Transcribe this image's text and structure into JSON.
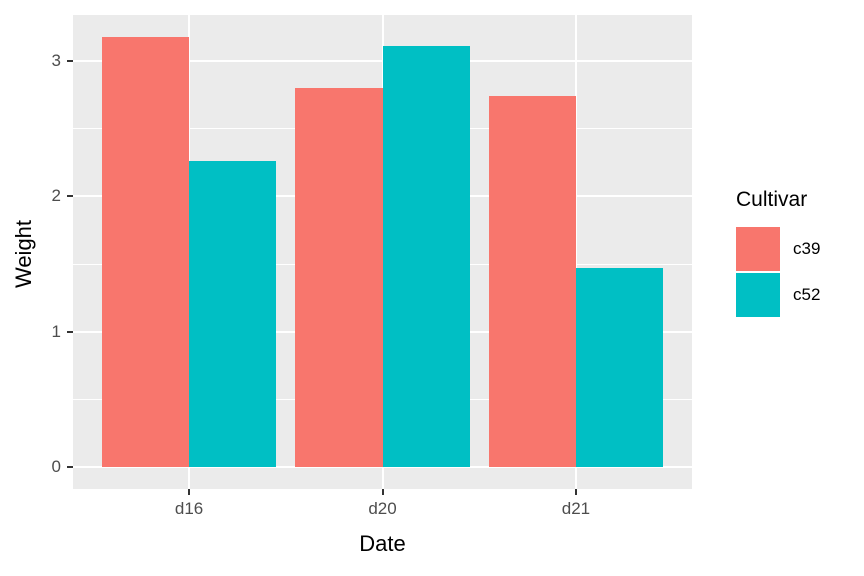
{
  "chart_data": {
    "type": "bar",
    "title": "",
    "xlabel": "Date",
    "ylabel": "Weight",
    "categories": [
      "d16",
      "d20",
      "d21"
    ],
    "series": [
      {
        "name": "c39",
        "color": "#F8766D",
        "values": [
          3.18,
          2.8,
          2.74
        ]
      },
      {
        "name": "c52",
        "color": "#00BFC4",
        "values": [
          2.26,
          3.11,
          1.47
        ]
      }
    ],
    "legend_title": "Cultivar",
    "legend_position": "right",
    "ylim": [
      -0.16,
      3.34
    ],
    "yticks": [
      0,
      1,
      2,
      3
    ],
    "yminor": [
      0.5,
      1.5,
      2.5
    ],
    "grid": "on",
    "bar_layout": "dodge",
    "colors": {
      "panel_background": "#EBEBEB",
      "gridline": "#FFFFFF",
      "tick_mark": "#333333",
      "tick_label": "#4D4D4D",
      "axis_title": "#000000"
    }
  }
}
